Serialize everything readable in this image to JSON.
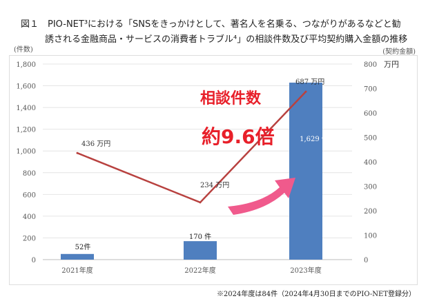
{
  "title_line1": "図１　PIO-NET³における「SNSをきっかけとして、著名人を名乗る、つながりがあるなどと勧",
  "title_line2": "誘される金融商品・サービスの消費者トラブル⁴」の相談件数及び平均契約購入金額の推移",
  "left_unit": "(件数)",
  "right_unit": "(契約金額)",
  "right_unit2": "万円",
  "note": "※2024年度は84件（2024年4月30日までのPIO-NET登録分）",
  "annotation1": "相談件数",
  "annotation2": "約9.6倍",
  "colors": {
    "bar": "#4f7fbf",
    "line": "#b8413f",
    "annotation": "#e8202a",
    "arrow": "#f05a8c"
  },
  "chart_data": {
    "type": "bar+line",
    "categories": [
      "2021年度",
      "2022年度",
      "2023年度"
    ],
    "series": [
      {
        "name": "相談件数",
        "type": "bar",
        "axis": "left",
        "values": [
          52,
          170,
          1629
        ],
        "labels": [
          "52件",
          "170 件",
          "1,629 件"
        ]
      },
      {
        "name": "平均契約購入金額",
        "type": "line",
        "axis": "right",
        "values": [
          436,
          234,
          687
        ],
        "labels": [
          "436 万円",
          "234 万円",
          "687 万円"
        ]
      }
    ],
    "left_axis": {
      "ylim": [
        0,
        1800
      ],
      "ticks": [
        "0",
        "200",
        "400",
        "600",
        "800",
        "1,000",
        "1,200",
        "1,400",
        "1,600",
        "1,800"
      ]
    },
    "right_axis": {
      "ylim": [
        0,
        800
      ],
      "ticks": [
        "0",
        "100",
        "200",
        "300",
        "400",
        "500",
        "600",
        "700",
        "800"
      ]
    },
    "grid": true
  }
}
